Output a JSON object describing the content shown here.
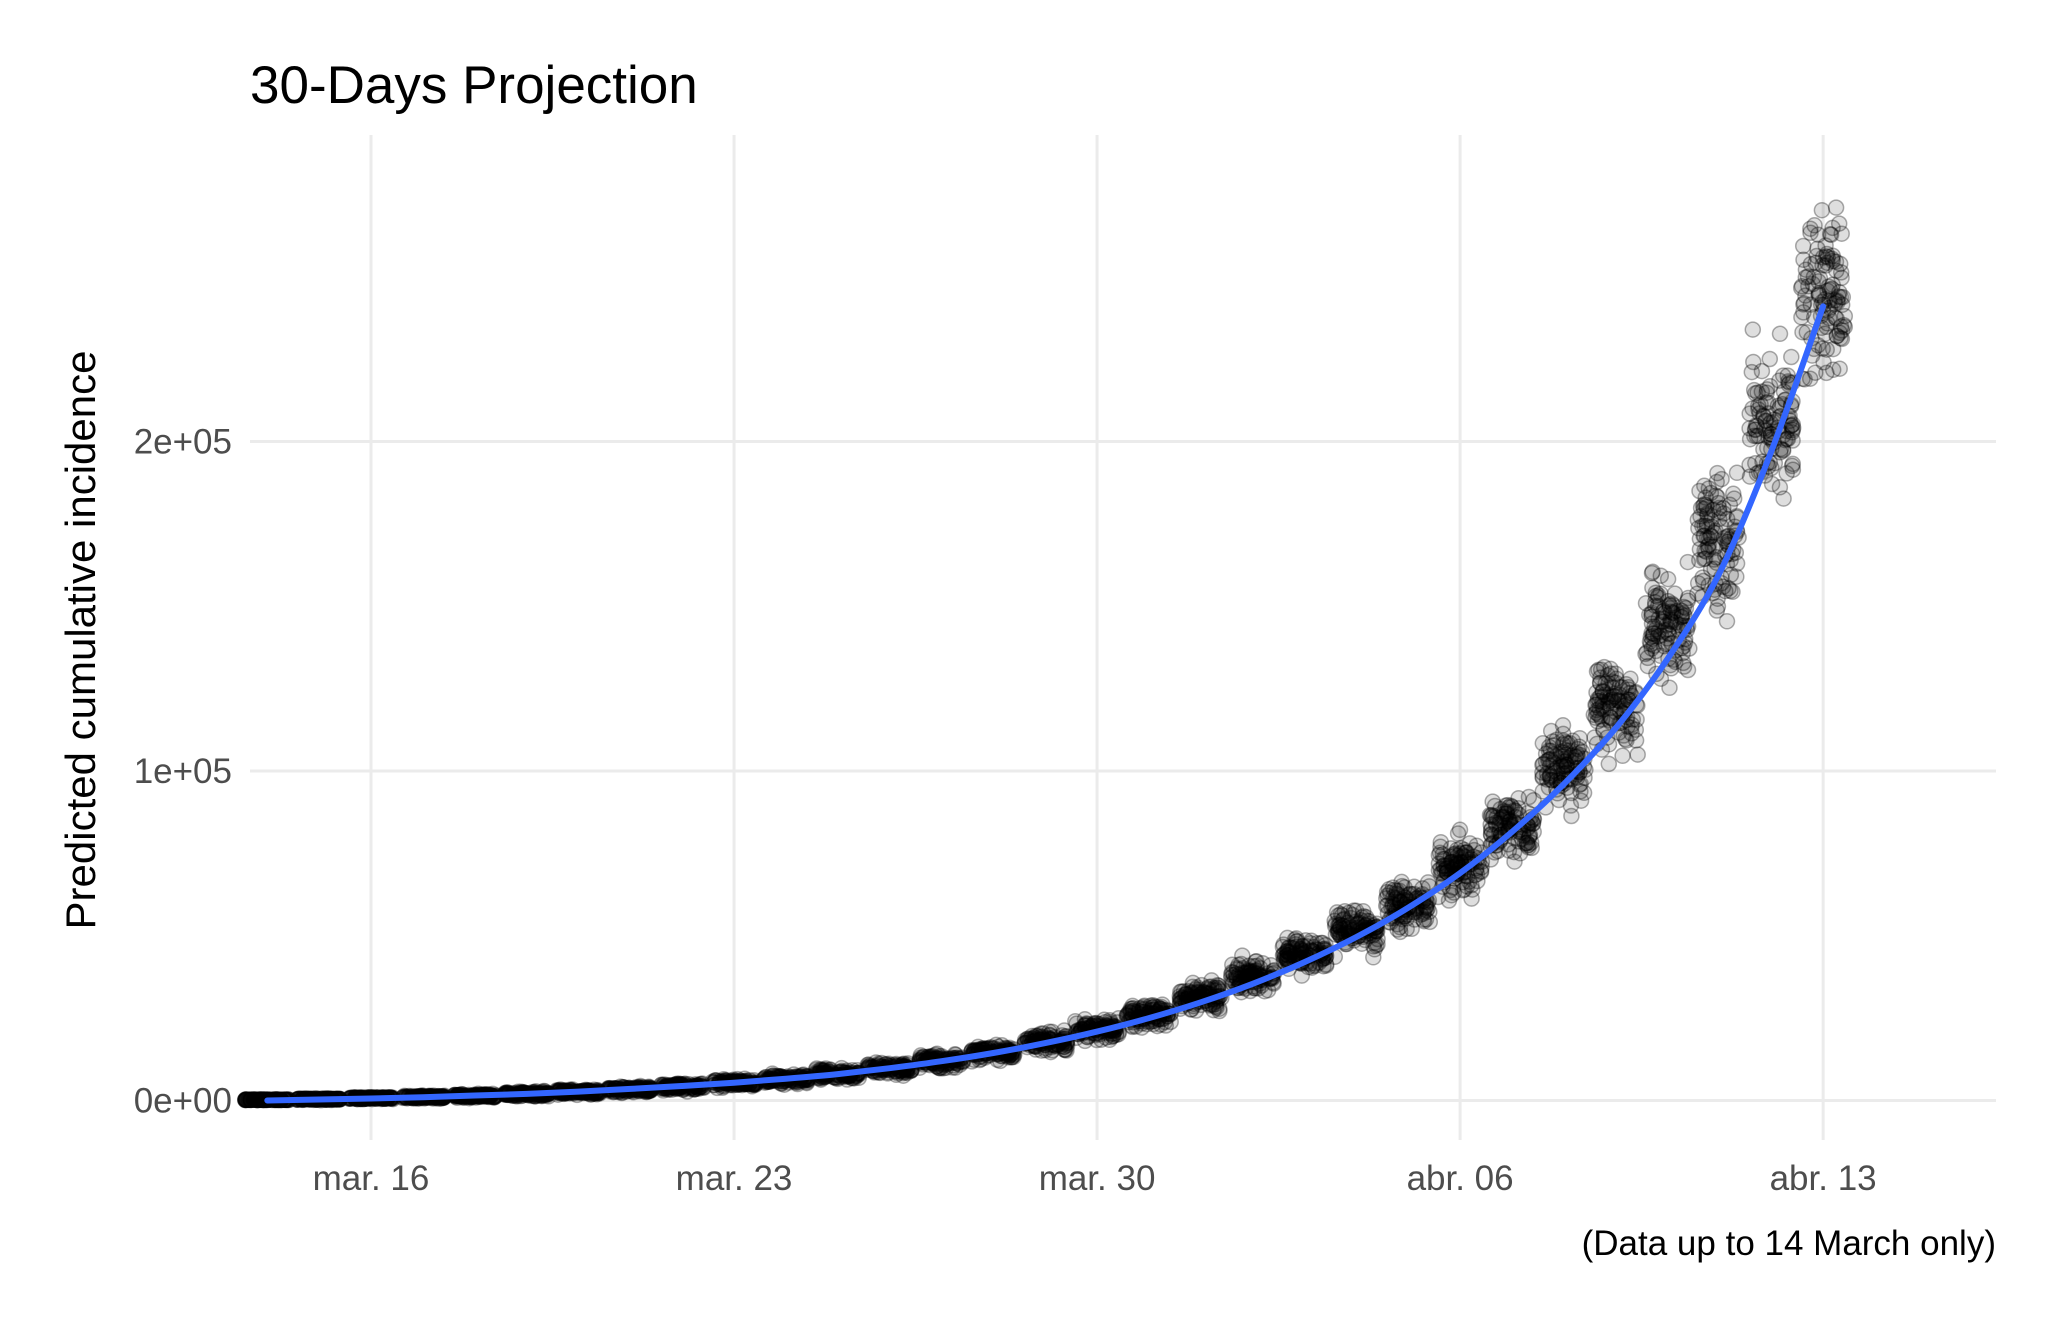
{
  "chart_data": {
    "type": "scatter",
    "title": "30-Days Projection",
    "ylabel": "Predicted cumulative incidence",
    "xlabel": "",
    "caption": "(Data up to 14 March only)",
    "x_axis": {
      "kind": "date",
      "range": [
        "2020-03-13T16:00",
        "2020-04-16T08:00"
      ],
      "ticks": [
        {
          "date": "2020-03-16",
          "label": "mar. 16"
        },
        {
          "date": "2020-03-23",
          "label": "mar. 23"
        },
        {
          "date": "2020-03-30",
          "label": "mar. 30"
        },
        {
          "date": "2020-04-06",
          "label": "abr. 06"
        },
        {
          "date": "2020-04-13",
          "label": "abr. 13"
        }
      ]
    },
    "y_axis": {
      "range": [
        -12000,
        293000
      ],
      "ticks": [
        {
          "value": 0,
          "label": "0e+00"
        },
        {
          "value": 100000,
          "label": "1e+05"
        },
        {
          "value": 200000,
          "label": "2e+05"
        }
      ]
    },
    "grid": true,
    "legend": "none",
    "colors": {
      "points": "#000000",
      "fit_line": "#3366ff",
      "grid": "#ebebeb"
    },
    "series": [
      {
        "kind": "points",
        "dates": [
          "2020-03-14",
          "2020-03-15",
          "2020-03-16",
          "2020-03-17",
          "2020-03-18",
          "2020-03-19",
          "2020-03-20",
          "2020-03-21",
          "2020-03-22",
          "2020-03-23",
          "2020-03-24",
          "2020-03-25",
          "2020-03-26",
          "2020-03-27",
          "2020-03-28",
          "2020-03-29",
          "2020-03-30",
          "2020-03-31",
          "2020-04-01",
          "2020-04-02",
          "2020-04-03",
          "2020-04-04",
          "2020-04-05",
          "2020-04-06",
          "2020-04-07",
          "2020-04-08",
          "2020-04-09",
          "2020-04-10",
          "2020-04-11",
          "2020-04-12",
          "2020-04-13"
        ],
        "center": [
          200,
          400,
          700,
          1000,
          1400,
          2000,
          2600,
          3400,
          4300,
          5300,
          6500,
          8000,
          9800,
          12000,
          14700,
          17900,
          21500,
          26000,
          31500,
          37700,
          44500,
          51900,
          60000,
          70000,
          83000,
          101000,
          120000,
          144000,
          170000,
          206000,
          244000
        ],
        "spread": [
          100,
          200,
          300,
          400,
          500,
          600,
          700,
          800,
          900,
          1000,
          1200,
          1400,
          1600,
          1800,
          2000,
          2300,
          2600,
          3000,
          3500,
          4000,
          4500,
          5200,
          6000,
          7000,
          8000,
          10000,
          12000,
          14000,
          17000,
          19000,
          21000
        ]
      },
      {
        "kind": "smooth",
        "dates": [
          "2020-03-14",
          "2020-03-15",
          "2020-03-16",
          "2020-03-17",
          "2020-03-18",
          "2020-03-19",
          "2020-03-20",
          "2020-03-21",
          "2020-03-22",
          "2020-03-23",
          "2020-03-24",
          "2020-03-25",
          "2020-03-26",
          "2020-03-27",
          "2020-03-28",
          "2020-03-29",
          "2020-03-30",
          "2020-03-31",
          "2020-04-01",
          "2020-04-02",
          "2020-04-03",
          "2020-04-04",
          "2020-04-05",
          "2020-04-06",
          "2020-04-07",
          "2020-04-08",
          "2020-04-09",
          "2020-04-10",
          "2020-04-11",
          "2020-04-12",
          "2020-04-13"
        ],
        "values": [
          0,
          300,
          600,
          1000,
          1500,
          2000,
          2700,
          3500,
          4400,
          5400,
          6600,
          8000,
          9800,
          11900,
          14400,
          17400,
          20900,
          25000,
          29800,
          35400,
          42000,
          49600,
          58500,
          69000,
          81500,
          96000,
          113000,
          134000,
          160000,
          197000,
          241000
        ]
      }
    ]
  }
}
